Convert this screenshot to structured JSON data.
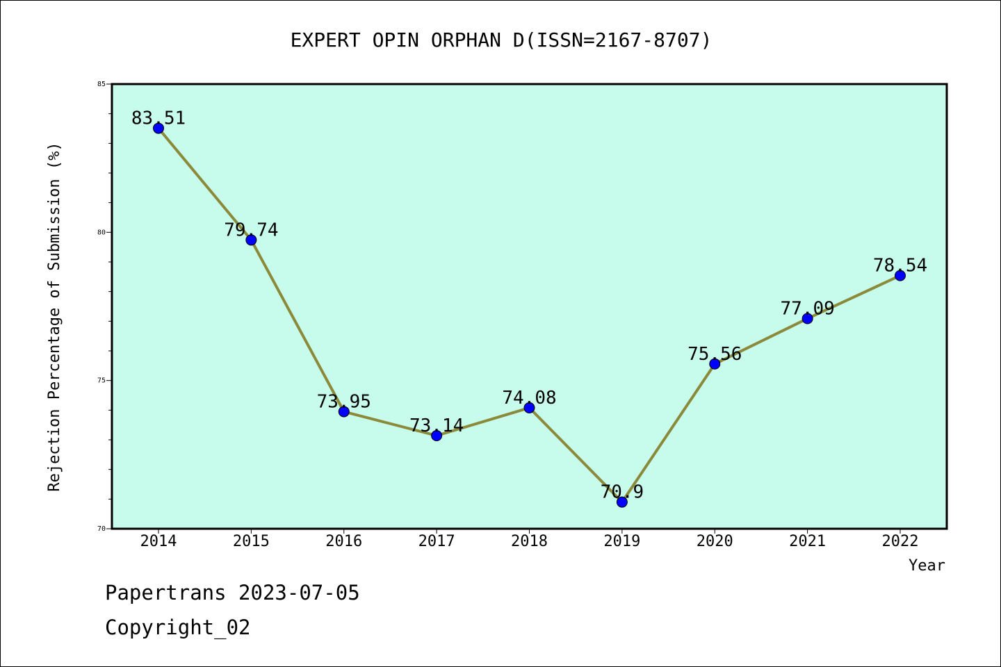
{
  "chart_data": {
    "type": "line",
    "title": "EXPERT OPIN ORPHAN D(ISSN=2167-8707)",
    "xlabel": "Year",
    "ylabel": "Rejection Percentage of Submission (%)",
    "categories": [
      "2014",
      "2015",
      "2016",
      "2017",
      "2018",
      "2019",
      "2020",
      "2021",
      "2022"
    ],
    "series": [
      {
        "values": [
          83.51,
          79.74,
          73.95,
          73.14,
          74.08,
          70.9,
          75.56,
          77.09,
          78.54
        ],
        "data_labels": [
          "83.51",
          "79.74",
          "73.95",
          "73.14",
          "74.08",
          "70.9",
          "75.56",
          "77.09",
          "78.54"
        ]
      }
    ],
    "ylim": [
      70,
      85
    ],
    "yticks": [
      "70",
      "75",
      "80",
      "85"
    ],
    "grid": false,
    "colors": {
      "plot_background": "#c7fcec",
      "line": "#8b8a3b",
      "marker": "#0000ff"
    }
  },
  "footer": {
    "line1": "Papertrans 2023-07-05",
    "line2": "Copyright_02"
  }
}
